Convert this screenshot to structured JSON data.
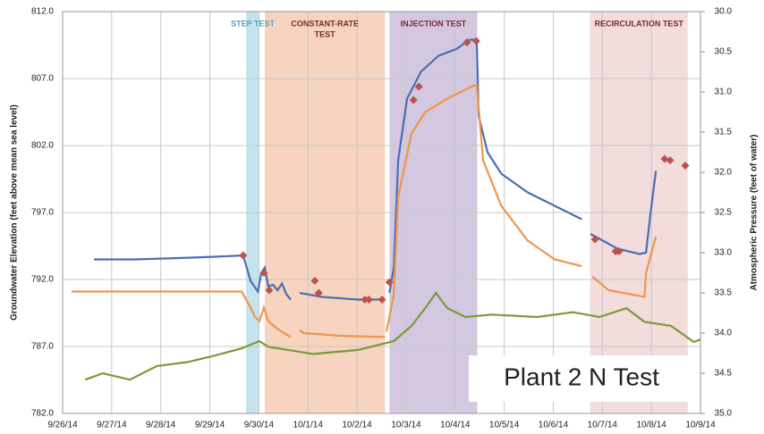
{
  "chart_data": {
    "type": "line",
    "y_label": "Groundwater Elevation (feet above mean sea level)",
    "y2_label": "Atmospheric Pressure (feet of water)",
    "annotation": "Plant 2 N Test",
    "grid": true,
    "xlim": [
      0,
      13
    ],
    "xticks": [
      {
        "value": 0,
        "label": "9/26/14"
      },
      {
        "value": 1,
        "label": "9/27/14"
      },
      {
        "value": 2,
        "label": "9/28/14"
      },
      {
        "value": 3,
        "label": "9/29/14"
      },
      {
        "value": 4,
        "label": "9/30/14"
      },
      {
        "value": 5,
        "label": "10/1/14"
      },
      {
        "value": 6,
        "label": "10/2/14"
      },
      {
        "value": 7,
        "label": "10/3/14"
      },
      {
        "value": 8,
        "label": "10/4/14"
      },
      {
        "value": 9,
        "label": "10/5/14"
      },
      {
        "value": 10,
        "label": "10/6/14"
      },
      {
        "value": 11,
        "label": "10/7/14"
      },
      {
        "value": 12,
        "label": "10/8/14"
      },
      {
        "value": 13,
        "label": "10/9/14"
      }
    ],
    "ylim": [
      782,
      812
    ],
    "yticks": [
      {
        "value": 782,
        "label": "782.0"
      },
      {
        "value": 787,
        "label": "787.0"
      },
      {
        "value": 792,
        "label": "792.0"
      },
      {
        "value": 797,
        "label": "797.0"
      },
      {
        "value": 802,
        "label": "802.0"
      },
      {
        "value": 807,
        "label": "807.0"
      },
      {
        "value": 812,
        "label": "812.0"
      }
    ],
    "y2lim": [
      35,
      30
    ],
    "y2ticks": [
      {
        "value": 35,
        "label": "35.0"
      },
      {
        "value": 34.5,
        "label": "34.5"
      },
      {
        "value": 34,
        "label": "34.0"
      },
      {
        "value": 33.5,
        "label": "33.5"
      },
      {
        "value": 33,
        "label": "33.0"
      },
      {
        "value": 32.5,
        "label": "32.5"
      },
      {
        "value": 32,
        "label": "32.0"
      },
      {
        "value": 31.5,
        "label": "31.5"
      },
      {
        "value": 31,
        "label": "31.0"
      },
      {
        "value": 30.5,
        "label": "30.5"
      },
      {
        "value": 30,
        "label": "30.0"
      }
    ],
    "regions": [
      {
        "label": [
          "STEP TEST"
        ],
        "start": 3.74,
        "end": 4.01,
        "color": "#c5e3ec",
        "text_color": "#4fa3c4"
      },
      {
        "label": [
          "CONSTANT-RATE",
          "TEST"
        ],
        "start": 4.12,
        "end": 6.57,
        "color": "#f6d4bf",
        "text_color": "#7a2a2a"
      },
      {
        "label": [
          "INJECTION TEST"
        ],
        "start": 6.66,
        "end": 8.45,
        "color": "#d3c8e0",
        "text_color": "#7a2a2a"
      },
      {
        "label": [
          "RECIRCULATION TEST"
        ],
        "start": 10.75,
        "end": 12.74,
        "color": "#f2dcdc",
        "text_color": "#7a2a2a"
      }
    ],
    "series": [
      {
        "color": "#4a6fb5",
        "style": "line",
        "x": [
          0.64,
          1.46,
          2.37,
          3.1,
          3.68,
          3.83,
          3.98,
          4.05,
          4.12,
          4.19,
          4.29,
          4.38,
          4.47,
          4.56,
          4.65,
          null,
          4.83,
          5.29,
          6.02,
          6.57,
          null,
          6.66,
          6.75,
          6.84,
          7.02,
          7.3,
          7.66,
          8.02,
          8.3,
          8.44,
          8.48,
          8.66,
          8.94,
          9.48,
          10.03,
          10.58,
          null,
          10.76,
          11.31,
          11.76,
          11.89,
          11.98,
          12.09
        ],
        "values": [
          793.5,
          793.5,
          793.6,
          793.7,
          793.8,
          791.9,
          791.1,
          792.5,
          792.9,
          791.5,
          791.6,
          791.2,
          791.7,
          790.9,
          790.5,
          null,
          791.0,
          790.7,
          790.5,
          790.5,
          null,
          791.0,
          792.9,
          800.9,
          805.5,
          807.5,
          808.7,
          809.2,
          809.9,
          809.9,
          804.2,
          801.5,
          799.9,
          798.5,
          797.5,
          796.5,
          null,
          795.4,
          794.3,
          793.9,
          794.0,
          796.9,
          800.1
        ]
      },
      {
        "color": "#f0954a",
        "style": "line",
        "x": [
          0.18,
          3.65,
          3.83,
          3.92,
          4.01,
          4.1,
          4.19,
          4.38,
          4.65,
          null,
          4.83,
          4.92,
          5.65,
          6.57,
          null,
          6.6,
          6.75,
          6.84,
          7.11,
          7.39,
          7.84,
          8.39,
          8.44,
          8.57,
          8.94,
          9.48,
          10.03,
          10.58,
          null,
          10.8,
          11.13,
          11.86,
          11.89,
          12.09
        ],
        "values": [
          791.1,
          791.1,
          789.9,
          789.2,
          788.9,
          789.9,
          788.9,
          788.3,
          787.7,
          null,
          788.2,
          788.0,
          787.8,
          787.7,
          null,
          788.1,
          790.9,
          798.2,
          802.9,
          804.5,
          805.5,
          806.5,
          806.5,
          800.9,
          797.5,
          794.9,
          793.5,
          793.0,
          null,
          792.2,
          791.2,
          790.7,
          792.5,
          795.2
        ]
      },
      {
        "color": "#7a9a3a",
        "style": "line",
        "axis": "y2",
        "x": [
          0.46,
          0.82,
          1.37,
          1.92,
          2.55,
          3.1,
          3.65,
          4.01,
          4.19,
          5.11,
          6.02,
          6.75,
          7.11,
          7.39,
          7.61,
          7.84,
          8.21,
          8.75,
          9.67,
          10.4,
          10.94,
          11.49,
          11.86,
          12.4,
          12.86,
          13.0
        ],
        "values": [
          34.58,
          34.5,
          34.58,
          34.41,
          34.36,
          34.28,
          34.19,
          34.1,
          34.17,
          34.26,
          34.21,
          34.1,
          33.91,
          33.69,
          33.5,
          33.69,
          33.8,
          33.77,
          33.8,
          33.74,
          33.8,
          33.69,
          33.86,
          33.91,
          34.11,
          34.08
        ]
      },
      {
        "color": "#c0504d",
        "style": "markers",
        "x": [
          3.68,
          4.1,
          4.21,
          5.14,
          5.22,
          6.16,
          6.24,
          6.51,
          6.66,
          7.15,
          7.26,
          8.24,
          8.43,
          10.85,
          11.27,
          11.34,
          12.27,
          12.38,
          12.69
        ],
        "values": [
          793.8,
          792.5,
          791.2,
          791.9,
          791.0,
          790.5,
          790.5,
          790.5,
          791.8,
          805.4,
          806.4,
          809.7,
          809.8,
          795.0,
          794.1,
          794.1,
          801.0,
          800.9,
          800.5
        ]
      }
    ]
  }
}
